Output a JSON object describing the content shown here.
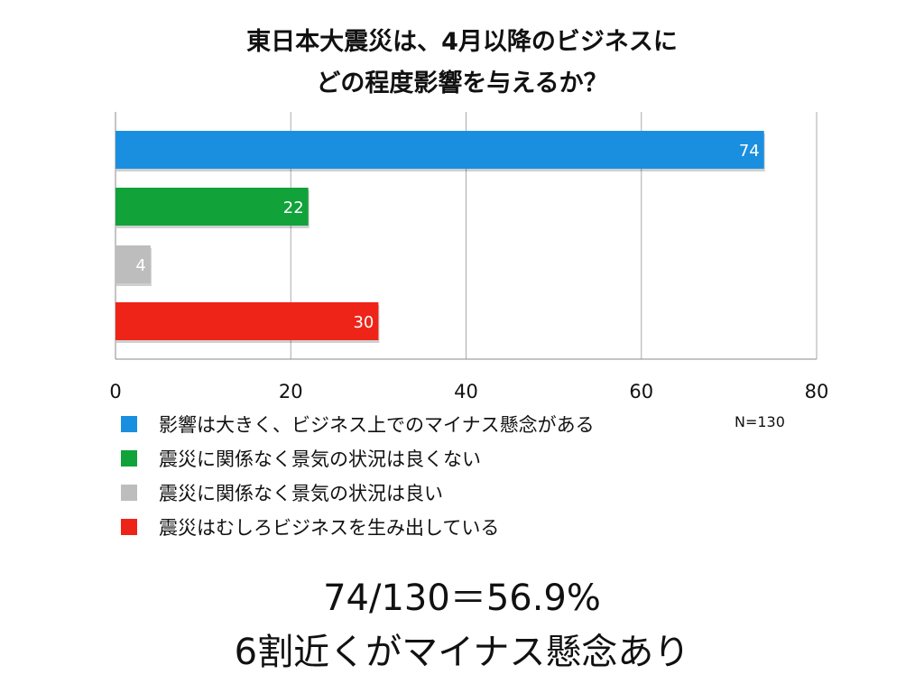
{
  "chart_data": {
    "type": "bar",
    "orientation": "horizontal",
    "title": [
      "東日本大震災は、4月以降のビジネスに",
      "どの程度影響を与えるか？"
    ],
    "categories": [
      "影響は大きく、ビジネス上でのマイナス懸念がある",
      "震災に関係なく景気の状況は良くない",
      "震災に関係なく景気の状況は良い",
      "震災はむしろビジネスを生み出している"
    ],
    "values": [
      74,
      22,
      4,
      30
    ],
    "colors": [
      "#1a8fe0",
      "#11a23a",
      "#bdbdbd",
      "#ee2418"
    ],
    "xlim": [
      0,
      80
    ],
    "xticks": [
      "0",
      "20",
      "40",
      "60",
      "80"
    ],
    "grid": true,
    "legend_position": "bottom",
    "note": "N=130"
  },
  "summary": {
    "line1": "74/130＝56.9%",
    "line2": "6割近くがマイナス懸念あり"
  }
}
